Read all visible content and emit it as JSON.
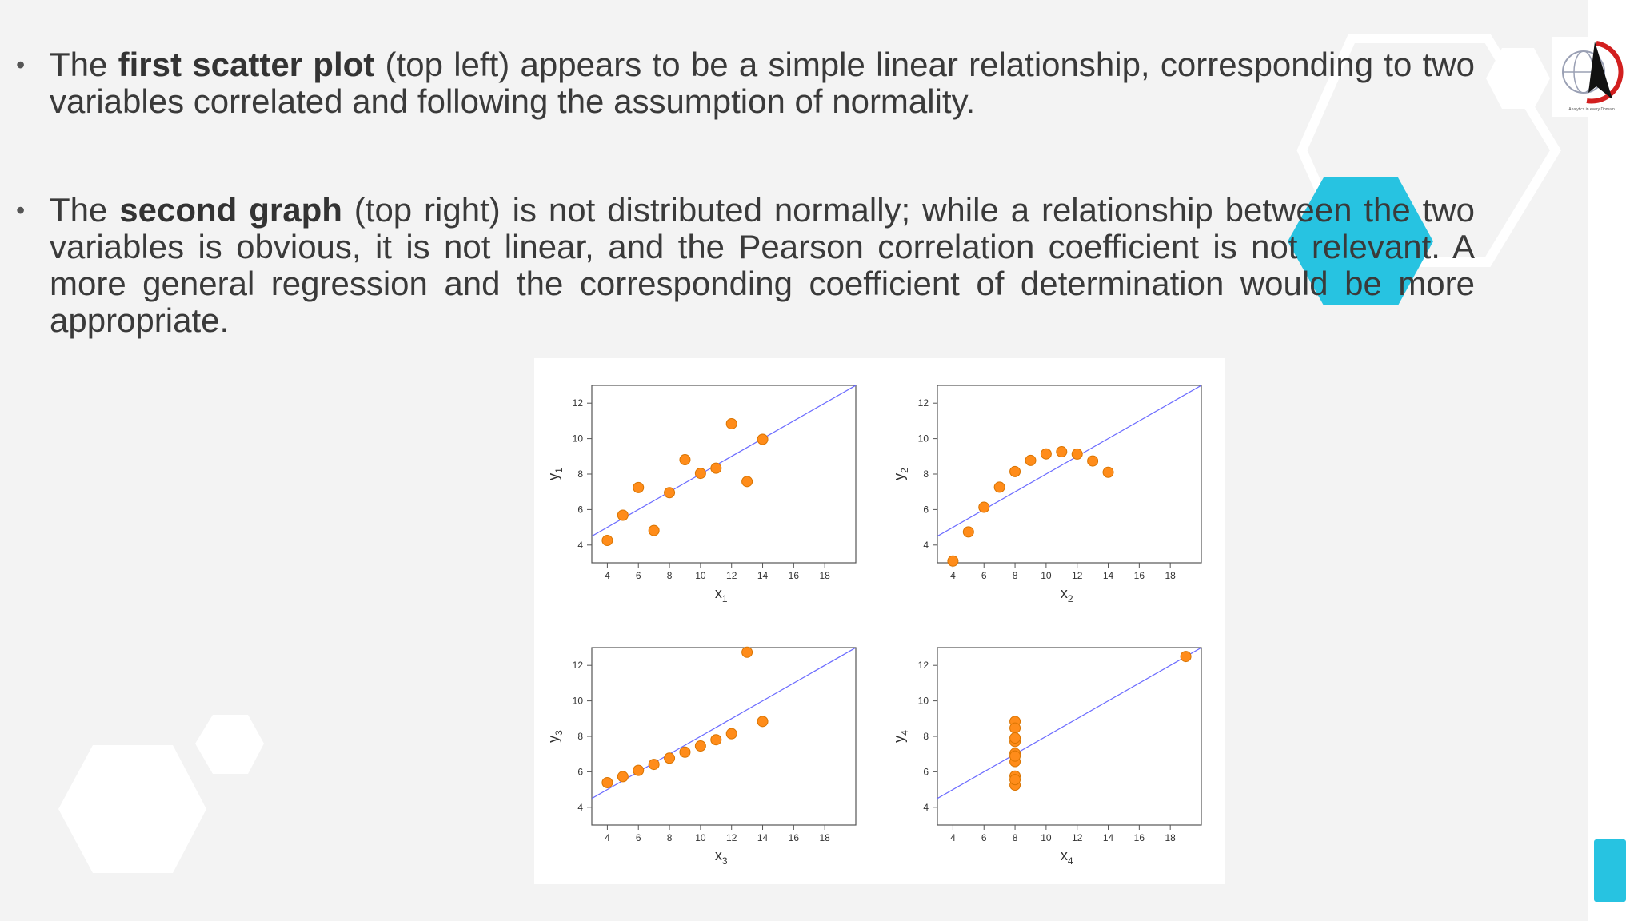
{
  "slide": {
    "bullet1": {
      "before": "The ",
      "bold": "first scatter plot",
      "after": " (top left) appears to be a simple linear relationship, corresponding to two variables correlated and following the assumption of normality."
    },
    "bullet2": {
      "before": "The ",
      "bold": "second graph",
      "after": " (top right) is not distributed normally; while a relationship between the two variables is obvious, it is not linear, and the Pearson correlation coefficient is not relevant. A more general regression and the corresponding coefficient of determination would be more appropriate."
    },
    "bullet_symbol": "•",
    "logo_text": "Analytics in every Domain"
  },
  "colors": {
    "accent": "#27c3e1",
    "point_fill": "#ff8c1a",
    "point_stroke": "#d97400",
    "fit_line": "#6b6bff"
  },
  "chart_data": [
    {
      "type": "scatter",
      "xlabel": "x",
      "xsub": "1",
      "ylabel": "y",
      "ysub": "1",
      "xlim": [
        3,
        20
      ],
      "ylim": [
        3,
        13
      ],
      "xticks": [
        4,
        6,
        8,
        10,
        12,
        14,
        16,
        18
      ],
      "yticks": [
        4,
        6,
        8,
        10,
        12
      ],
      "fit": {
        "intercept": 3,
        "slope": 0.5
      },
      "points": [
        [
          10,
          8.04
        ],
        [
          8,
          6.95
        ],
        [
          13,
          7.58
        ],
        [
          9,
          8.81
        ],
        [
          11,
          8.33
        ],
        [
          14,
          9.96
        ],
        [
          6,
          7.24
        ],
        [
          4,
          4.26
        ],
        [
          12,
          10.84
        ],
        [
          7,
          4.82
        ],
        [
          5,
          5.68
        ]
      ]
    },
    {
      "type": "scatter",
      "xlabel": "x",
      "xsub": "2",
      "ylabel": "y",
      "ysub": "2",
      "xlim": [
        3,
        20
      ],
      "ylim": [
        3,
        13
      ],
      "xticks": [
        4,
        6,
        8,
        10,
        12,
        14,
        16,
        18
      ],
      "yticks": [
        4,
        6,
        8,
        10,
        12
      ],
      "fit": {
        "intercept": 3,
        "slope": 0.5
      },
      "points": [
        [
          10,
          9.14
        ],
        [
          8,
          8.14
        ],
        [
          13,
          8.74
        ],
        [
          9,
          8.77
        ],
        [
          11,
          9.26
        ],
        [
          14,
          8.1
        ],
        [
          6,
          6.13
        ],
        [
          4,
          3.1
        ],
        [
          12,
          9.13
        ],
        [
          7,
          7.26
        ],
        [
          5,
          4.74
        ]
      ]
    },
    {
      "type": "scatter",
      "xlabel": "x",
      "xsub": "3",
      "ylabel": "y",
      "ysub": "3",
      "xlim": [
        3,
        20
      ],
      "ylim": [
        3,
        13
      ],
      "xticks": [
        4,
        6,
        8,
        10,
        12,
        14,
        16,
        18
      ],
      "yticks": [
        4,
        6,
        8,
        10,
        12
      ],
      "fit": {
        "intercept": 3,
        "slope": 0.5
      },
      "points": [
        [
          10,
          7.46
        ],
        [
          8,
          6.77
        ],
        [
          13,
          12.74
        ],
        [
          9,
          7.11
        ],
        [
          11,
          7.81
        ],
        [
          14,
          8.84
        ],
        [
          6,
          6.08
        ],
        [
          4,
          5.39
        ],
        [
          12,
          8.15
        ],
        [
          7,
          6.42
        ],
        [
          5,
          5.73
        ]
      ]
    },
    {
      "type": "scatter",
      "xlabel": "x",
      "xsub": "4",
      "ylabel": "y",
      "ysub": "4",
      "xlim": [
        3,
        20
      ],
      "ylim": [
        3,
        13
      ],
      "xticks": [
        4,
        6,
        8,
        10,
        12,
        14,
        16,
        18
      ],
      "yticks": [
        4,
        6,
        8,
        10,
        12
      ],
      "fit": {
        "intercept": 3,
        "slope": 0.5
      },
      "points": [
        [
          8,
          6.58
        ],
        [
          8,
          5.76
        ],
        [
          8,
          7.71
        ],
        [
          8,
          8.84
        ],
        [
          8,
          8.47
        ],
        [
          8,
          7.04
        ],
        [
          8,
          5.25
        ],
        [
          19,
          12.5
        ],
        [
          8,
          5.56
        ],
        [
          8,
          7.91
        ],
        [
          8,
          6.89
        ]
      ]
    }
  ]
}
